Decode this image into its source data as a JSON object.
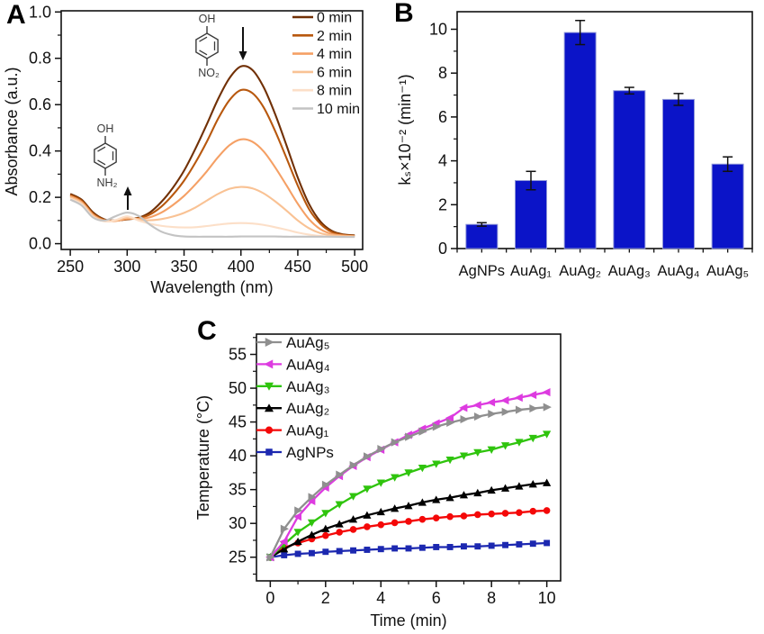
{
  "figure": {
    "panel_letters": {
      "a": "A",
      "b": "B",
      "c": "C"
    },
    "background": "#ffffff"
  },
  "chart_data": [
    {
      "id": "A",
      "type": "line",
      "xlabel": "Wavelength (nm)",
      "ylabel": "Absorbance (a.u.)",
      "xlim": [
        242,
        507
      ],
      "ylim": [
        -0.025,
        1.005
      ],
      "xticks": [
        250,
        300,
        350,
        400,
        450,
        500
      ],
      "xminor": 25,
      "yticks": [
        0,
        0.2,
        0.4,
        0.6,
        0.8,
        1.0
      ],
      "yminor": 0.1,
      "grid": false,
      "legend_position": "top-right",
      "x": [
        250,
        260,
        270,
        280,
        290,
        300,
        310,
        320,
        330,
        340,
        350,
        360,
        370,
        380,
        390,
        400,
        410,
        420,
        430,
        440,
        450,
        460,
        470,
        480,
        490,
        500
      ],
      "series": [
        {
          "name": "0 min",
          "color": "#713005",
          "values": [
            0.215,
            0.19,
            0.135,
            0.105,
            0.1,
            0.105,
            0.112,
            0.135,
            0.18,
            0.24,
            0.315,
            0.41,
            0.515,
            0.625,
            0.715,
            0.765,
            0.75,
            0.675,
            0.56,
            0.425,
            0.285,
            0.17,
            0.095,
            0.055,
            0.04,
            0.036
          ]
        },
        {
          "name": "2 min",
          "color": "#b8580e",
          "values": [
            0.21,
            0.185,
            0.13,
            0.103,
            0.099,
            0.106,
            0.11,
            0.126,
            0.16,
            0.21,
            0.272,
            0.35,
            0.44,
            0.54,
            0.62,
            0.663,
            0.65,
            0.588,
            0.487,
            0.37,
            0.25,
            0.148,
            0.085,
            0.05,
            0.038,
            0.034
          ]
        },
        {
          "name": "4 min",
          "color": "#f5a065",
          "values": [
            0.205,
            0.18,
            0.125,
            0.1,
            0.098,
            0.108,
            0.107,
            0.114,
            0.134,
            0.166,
            0.206,
            0.256,
            0.312,
            0.374,
            0.425,
            0.45,
            0.44,
            0.398,
            0.33,
            0.252,
            0.172,
            0.105,
            0.062,
            0.042,
            0.035,
            0.032
          ]
        },
        {
          "name": "6 min",
          "color": "#f9c294",
          "values": [
            0.2,
            0.175,
            0.12,
            0.098,
            0.1,
            0.112,
            0.104,
            0.101,
            0.106,
            0.117,
            0.133,
            0.156,
            0.186,
            0.215,
            0.237,
            0.245,
            0.239,
            0.217,
            0.183,
            0.143,
            0.1,
            0.066,
            0.045,
            0.036,
            0.032,
            0.031
          ]
        },
        {
          "name": "8 min",
          "color": "#fcdfc8",
          "values": [
            0.195,
            0.17,
            0.116,
            0.096,
            0.102,
            0.118,
            0.1,
            0.086,
            0.077,
            0.072,
            0.07,
            0.071,
            0.076,
            0.082,
            0.087,
            0.089,
            0.087,
            0.081,
            0.071,
            0.06,
            0.048,
            0.039,
            0.033,
            0.03,
            0.029,
            0.029
          ]
        },
        {
          "name": "10 min",
          "color": "#c3c3c3",
          "values": [
            0.19,
            0.165,
            0.113,
            0.1,
            0.119,
            0.134,
            0.12,
            0.082,
            0.052,
            0.037,
            0.031,
            0.03,
            0.03,
            0.03,
            0.03,
            0.031,
            0.031,
            0.031,
            0.031,
            0.03,
            0.03,
            0.03,
            0.03,
            0.03,
            0.029,
            0.029
          ]
        }
      ],
      "annotations": [
        {
          "label_top": "OH",
          "label_bottom": "NO₂",
          "arrow": "down"
        },
        {
          "label_top": "OH",
          "label_bottom": "NH₂",
          "arrow": "up"
        }
      ]
    },
    {
      "id": "B",
      "type": "bar",
      "ylabel": "kₛ×10⁻² (min⁻¹)",
      "categories": [
        "AgNPs",
        "AuAg₁",
        "AuAg₂",
        "AuAg₃",
        "AuAg₄",
        "AuAg₅"
      ],
      "values": [
        1.1,
        3.1,
        9.85,
        7.2,
        6.8,
        3.85
      ],
      "errors": [
        0.08,
        0.42,
        0.55,
        0.15,
        0.27,
        0.33
      ],
      "bar_color": "#0b14c8",
      "ylim": [
        0,
        10.8
      ],
      "yticks": [
        0,
        2,
        4,
        6,
        8,
        10
      ],
      "yminor": 1,
      "grid": false
    },
    {
      "id": "C",
      "type": "line",
      "markers": true,
      "xlabel": "Time (min)",
      "ylabel": "Temperature (°C)",
      "xlim": [
        -0.5,
        10.5
      ],
      "ylim": [
        21.5,
        58
      ],
      "xticks": [
        0,
        2,
        4,
        6,
        8,
        10
      ],
      "xminor": 1,
      "yticks": [
        25,
        30,
        35,
        40,
        45,
        50,
        55
      ],
      "yminor": 2.5,
      "grid": false,
      "legend_position": "top-left",
      "x": [
        0,
        0.5,
        1,
        1.5,
        2,
        2.5,
        3,
        3.5,
        4,
        4.5,
        5,
        5.5,
        6,
        6.5,
        7,
        7.5,
        8,
        8.5,
        9,
        9.5,
        10
      ],
      "series": [
        {
          "name": "AuAg₅",
          "color": "#8f8f8f",
          "marker": "triangle-right",
          "values": [
            25,
            29.2,
            31.9,
            33.9,
            35.7,
            37.2,
            38.6,
            39.9,
            41.0,
            42.0,
            42.8,
            43.6,
            44.3,
            44.9,
            45.4,
            45.8,
            46.2,
            46.5,
            46.8,
            47.0,
            47.2
          ]
        },
        {
          "name": "AuAg₄",
          "color": "#dd3be0",
          "marker": "triangle-left",
          "values": [
            25,
            27.3,
            31.0,
            33.3,
            35.3,
            37.0,
            38.5,
            39.8,
            40.9,
            42.0,
            43.1,
            44.0,
            44.8,
            45.6,
            47.1,
            47.5,
            47.9,
            48.2,
            48.6,
            49.0,
            49.4
          ]
        },
        {
          "name": "AuAg₃",
          "color": "#2fc40d",
          "marker": "triangle-down",
          "values": [
            25,
            26.9,
            28.7,
            30.1,
            31.5,
            32.8,
            34.0,
            35.1,
            36.0,
            36.8,
            37.5,
            38.2,
            38.8,
            39.4,
            40.0,
            40.5,
            40.9,
            41.5,
            42.0,
            42.6,
            43.2
          ]
        },
        {
          "name": "AuAg₂",
          "color": "#000000",
          "marker": "triangle-up",
          "values": [
            25,
            26.2,
            27.3,
            28.3,
            29.2,
            29.9,
            30.6,
            31.2,
            31.7,
            32.2,
            32.6,
            33.1,
            33.5,
            33.8,
            34.2,
            34.5,
            34.9,
            35.2,
            35.5,
            35.8,
            36.0
          ]
        },
        {
          "name": "AuAg₁",
          "color": "#f40808",
          "marker": "circle",
          "values": [
            25,
            26.4,
            27.1,
            27.7,
            28.2,
            28.7,
            29.1,
            29.5,
            29.8,
            30.1,
            30.3,
            30.6,
            30.8,
            31.0,
            31.1,
            31.3,
            31.4,
            31.5,
            31.6,
            31.8,
            31.9
          ]
        },
        {
          "name": "AgNPs",
          "color": "#1c28b0",
          "marker": "square",
          "values": [
            25,
            25.3,
            25.5,
            25.6,
            25.8,
            25.9,
            26.0,
            26.1,
            26.2,
            26.3,
            26.3,
            26.4,
            26.5,
            26.5,
            26.6,
            26.6,
            26.7,
            26.8,
            26.9,
            27.0,
            27.1
          ]
        }
      ]
    }
  ]
}
